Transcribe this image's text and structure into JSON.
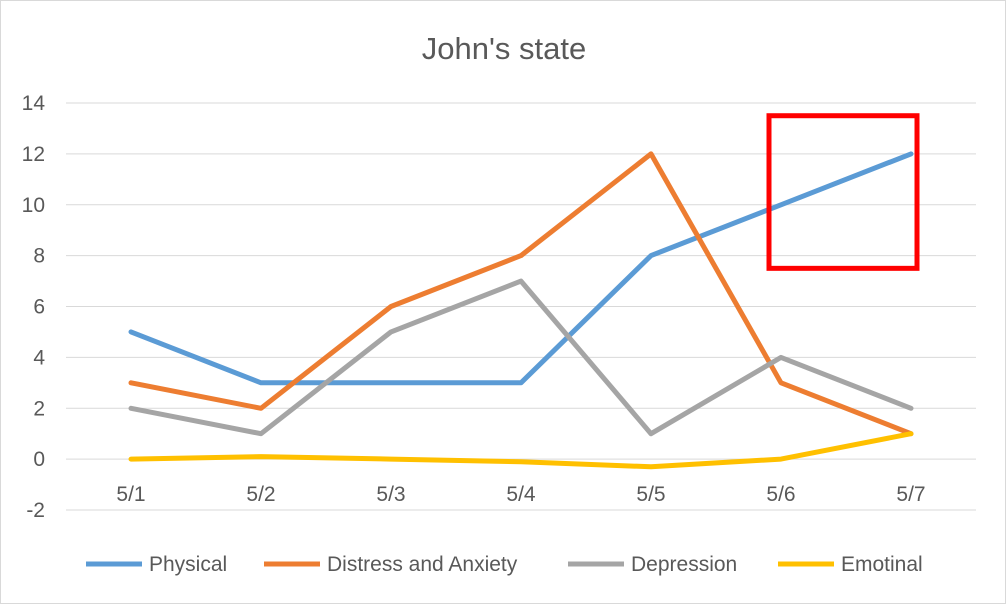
{
  "chart_data": {
    "type": "line",
    "title": "John's state",
    "xlabel": "",
    "ylabel": "",
    "categories": [
      "5/1",
      "5/2",
      "5/3",
      "5/4",
      "5/5",
      "5/6",
      "5/7"
    ],
    "ylim": [
      -2,
      14
    ],
    "yticks": [
      "-2",
      "0",
      "2",
      "4",
      "6",
      "8",
      "10",
      "12",
      "14"
    ],
    "grid": true,
    "legend_position": "bottom",
    "series": [
      {
        "name": "Physical",
        "color": "#5b9bd5",
        "values": [
          5,
          3,
          3,
          3,
          8,
          10,
          12
        ]
      },
      {
        "name": "Distress and Anxiety",
        "color": "#ed7d31",
        "values": [
          3,
          2,
          6,
          8,
          12,
          3,
          1
        ]
      },
      {
        "name": "Depression",
        "color": "#a5a5a5",
        "values": [
          2,
          1,
          5,
          7,
          1,
          4,
          2
        ]
      },
      {
        "name": "Emotinal",
        "color": "#ffc000",
        "values": [
          0,
          0.1,
          0,
          -0.1,
          -0.3,
          0,
          1
        ]
      }
    ],
    "annotation": {
      "type": "highlight-box",
      "color": "#ff0000",
      "x_range": [
        "5/6",
        "5/7"
      ],
      "y_range": [
        7.5,
        13.5
      ]
    }
  }
}
